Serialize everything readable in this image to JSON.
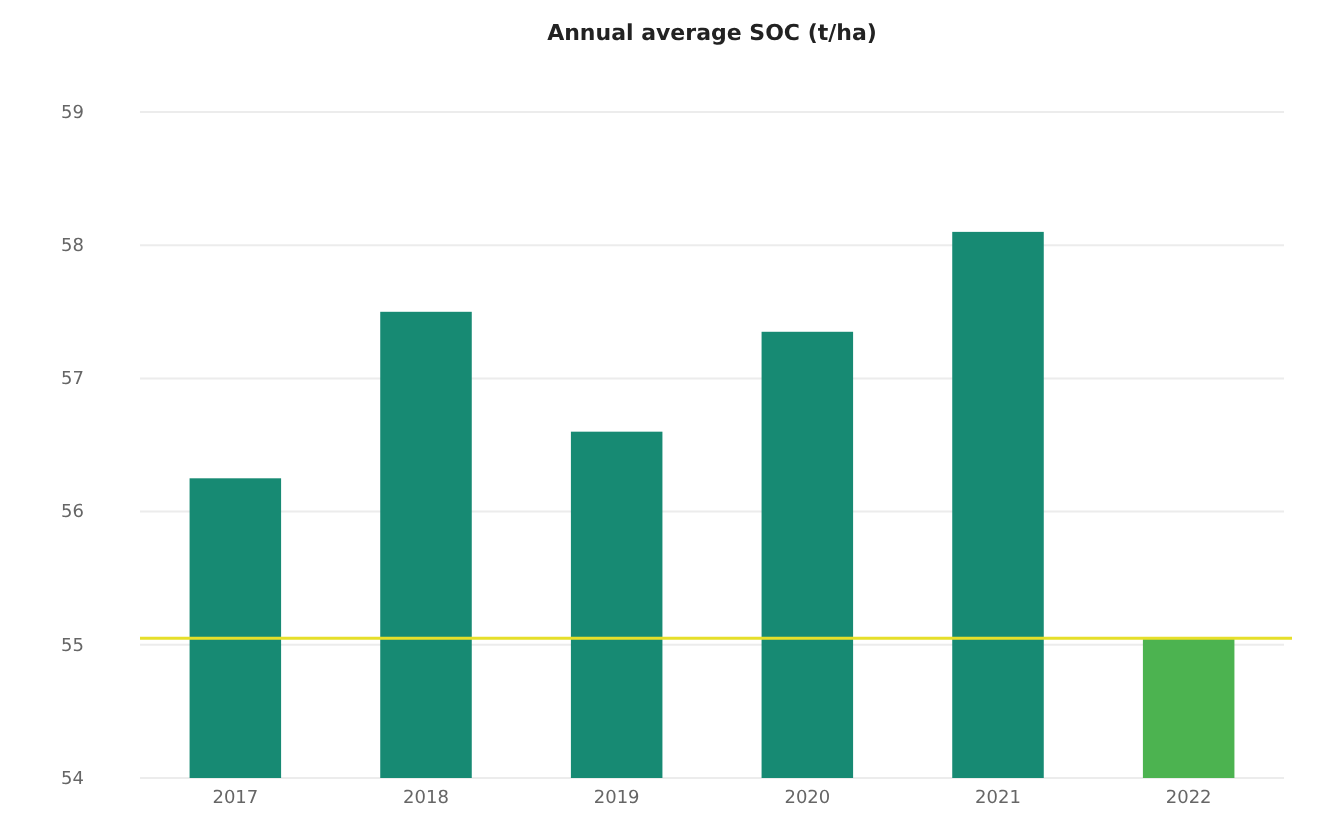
{
  "chart_data": {
    "type": "bar",
    "title": "Annual average SOC (t/ha)",
    "categories": [
      "2017",
      "2018",
      "2019",
      "2020",
      "2021",
      "2022"
    ],
    "values": [
      56.25,
      57.5,
      56.6,
      57.35,
      58.1,
      55.05
    ],
    "colors": [
      "#178a73",
      "#178a73",
      "#178a73",
      "#178a73",
      "#178a73",
      "#4cb350"
    ],
    "ylim": [
      54,
      59
    ],
    "yticks": [
      54,
      55,
      56,
      57,
      58,
      59
    ],
    "grid": "y",
    "ref_lines": [
      {
        "axis": "y",
        "value": 55.05,
        "color": "#e6df2a"
      }
    ]
  }
}
